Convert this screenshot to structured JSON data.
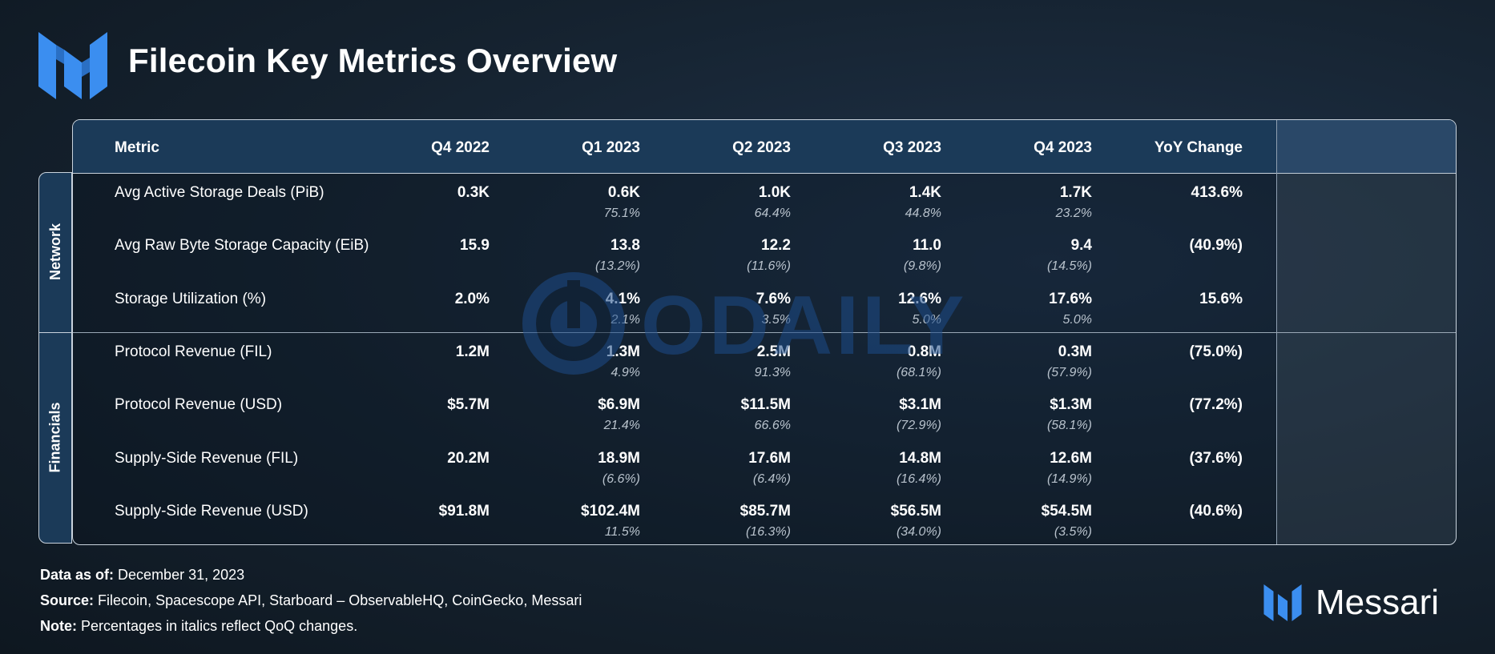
{
  "header": {
    "title": "Filecoin Key Metrics Overview"
  },
  "brand": {
    "name": "Messari",
    "accent": "#3b8ef0"
  },
  "watermark": {
    "text": "ODAILY"
  },
  "chart_data": {
    "type": "table",
    "title": "Filecoin Key Metrics Overview",
    "columns": [
      "Metric",
      "Q4 2022",
      "Q1 2023",
      "Q2 2023",
      "Q3 2023",
      "Q4 2023",
      "YoY Change"
    ],
    "groups": [
      {
        "label": "Network",
        "rows": [
          {
            "metric": "Avg Active Storage Deals (PiB)",
            "values": [
              "0.3K",
              "0.6K",
              "1.0K",
              "1.4K",
              "1.7K"
            ],
            "qoq": [
              "",
              "75.1%",
              "64.4%",
              "44.8%",
              "23.2%"
            ],
            "yoy": "413.6%"
          },
          {
            "metric": "Avg Raw Byte Storage Capacity (EiB)",
            "values": [
              "15.9",
              "13.8",
              "12.2",
              "11.0",
              "9.4"
            ],
            "qoq": [
              "",
              "(13.2%)",
              "(11.6%)",
              "(9.8%)",
              "(14.5%)"
            ],
            "yoy": "(40.9%)"
          },
          {
            "metric": "Storage Utilization (%)",
            "values": [
              "2.0%",
              "4.1%",
              "7.6%",
              "12.6%",
              "17.6%"
            ],
            "qoq": [
              "",
              "2.1%",
              "3.5%",
              "5.0%",
              "5.0%"
            ],
            "yoy": "15.6%"
          }
        ]
      },
      {
        "label": "Financials",
        "rows": [
          {
            "metric": "Protocol Revenue (FIL)",
            "values": [
              "1.2M",
              "1.3M",
              "2.5M",
              "0.8M",
              "0.3M"
            ],
            "qoq": [
              "",
              "4.9%",
              "91.3%",
              "(68.1%)",
              "(57.9%)"
            ],
            "yoy": "(75.0%)"
          },
          {
            "metric": "Protocol Revenue (USD)",
            "values": [
              "$5.7M",
              "$6.9M",
              "$11.5M",
              "$3.1M",
              "$1.3M"
            ],
            "qoq": [
              "",
              "21.4%",
              "66.6%",
              "(72.9%)",
              "(58.1%)"
            ],
            "yoy": "(77.2%)"
          },
          {
            "metric": "Supply-Side Revenue (FIL)",
            "values": [
              "20.2M",
              "18.9M",
              "17.6M",
              "14.8M",
              "12.6M"
            ],
            "qoq": [
              "",
              "(6.6%)",
              "(6.4%)",
              "(16.4%)",
              "(14.9%)"
            ],
            "yoy": "(37.6%)"
          },
          {
            "metric": "Supply-Side Revenue (USD)",
            "values": [
              "$91.8M",
              "$102.4M",
              "$85.7M",
              "$56.5M",
              "$54.5M"
            ],
            "qoq": [
              "",
              "11.5%",
              "(16.3%)",
              "(34.0%)",
              "(3.5%)"
            ],
            "yoy": "(40.6%)"
          }
        ]
      }
    ]
  },
  "footer": {
    "data_label": "Data as of:",
    "data_value": "December 31, 2023",
    "source_label": "Source:",
    "source_value": "Filecoin, Spacescope API, Starboard – ObservableHQ, CoinGecko, Messari",
    "note_label": "Note:",
    "note_value": "Percentages in italics reflect QoQ changes."
  }
}
